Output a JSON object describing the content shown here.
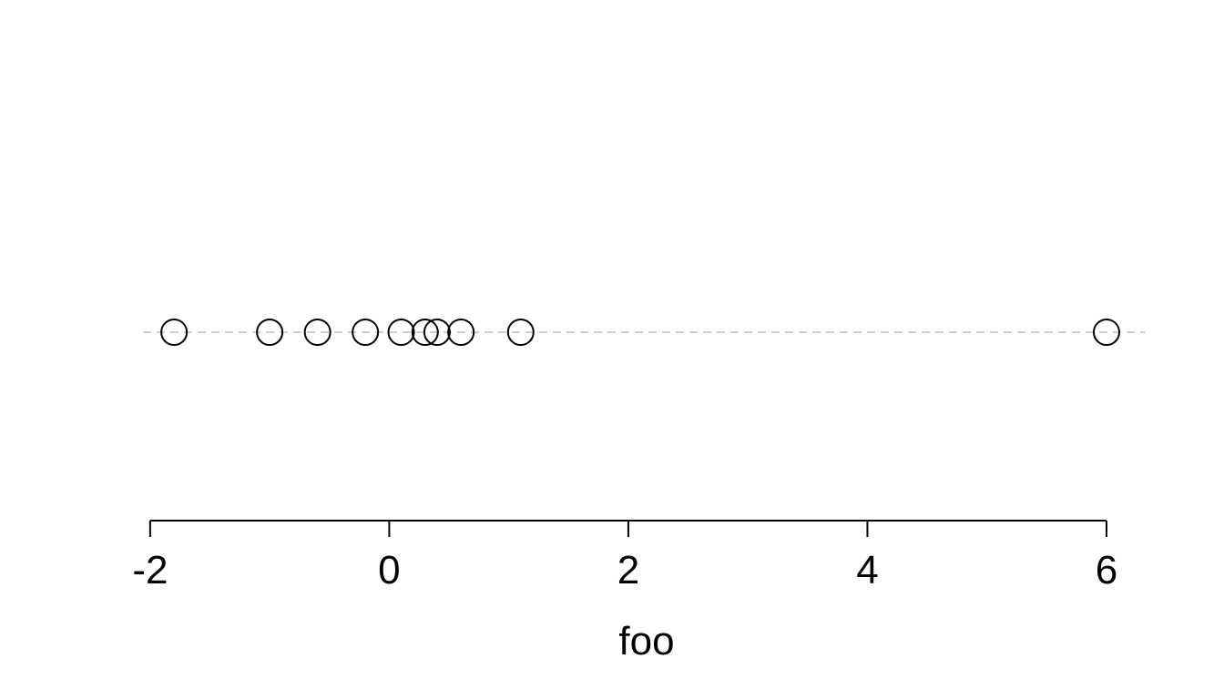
{
  "chart_data": {
    "type": "scatter",
    "title": "",
    "xlabel": "foo",
    "ylabel": "",
    "xlim": [
      -2.06,
      6.32
    ],
    "x_ticks": [
      -2,
      0,
      2,
      4,
      6
    ],
    "x_tick_labels": [
      "-2",
      "0",
      "2",
      "4",
      "6"
    ],
    "grid": false,
    "series": [
      {
        "x": [
          -1.8,
          -1.0,
          -0.6,
          -0.2,
          0.1,
          0.3,
          0.4,
          0.6,
          1.1,
          6.0
        ]
      }
    ],
    "reference_line": {
      "style": "dashed",
      "color": "#bdbdbd"
    },
    "colors": {
      "marker_stroke": "#000000",
      "marker_fill": "none",
      "axis": "#000000"
    }
  }
}
